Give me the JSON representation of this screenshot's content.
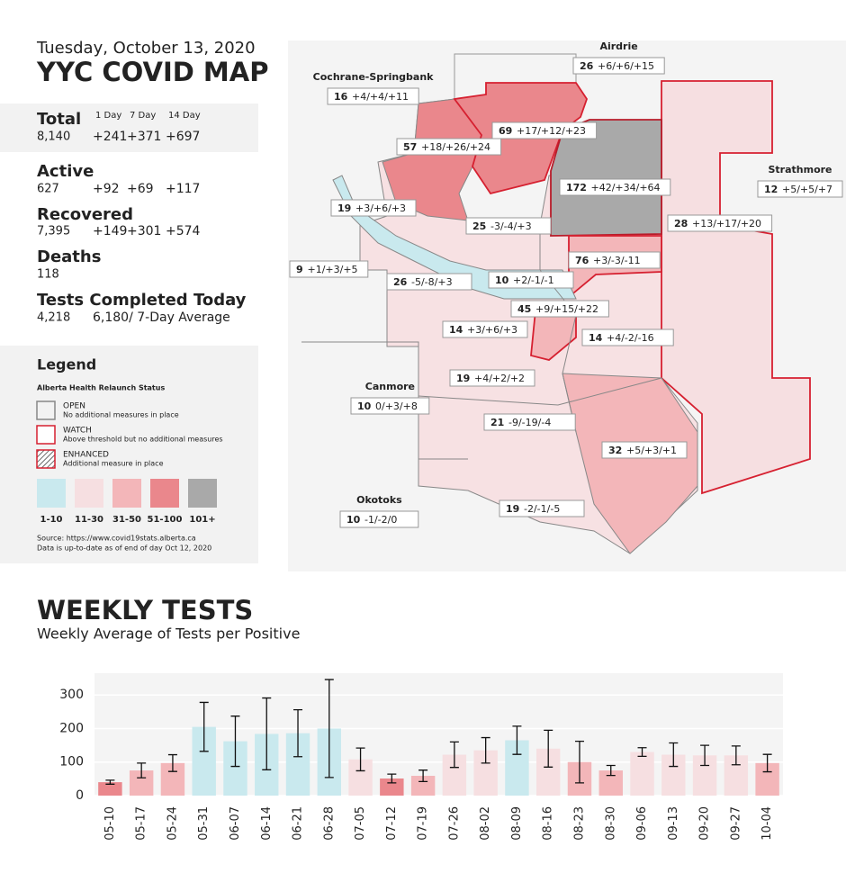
{
  "header": {
    "date": "Tuesday, October 13, 2020",
    "title": "YYC COVID MAP"
  },
  "stats": {
    "columns": [
      "1 Day",
      "7 Day",
      "14 Day"
    ],
    "rows": [
      {
        "label": "Total",
        "value": "8,140",
        "changes": [
          "+241",
          "+371",
          "+697"
        ]
      },
      {
        "label": "Active",
        "value": "627",
        "changes": [
          "+92",
          "+69",
          "+117"
        ]
      },
      {
        "label": "Recovered",
        "value": "7,395",
        "changes": [
          "+149",
          "+301",
          "+574"
        ]
      },
      {
        "label": "Deaths",
        "value": "118"
      },
      {
        "label": "Tests Completed Today",
        "value": "4,218",
        "note": "6,180/ 7-Day Average"
      }
    ]
  },
  "legend": {
    "title": "Legend",
    "subtitle": "Alberta Health Relaunch Status",
    "statuses": [
      {
        "label": "OPEN",
        "description": "No additional measures in place"
      },
      {
        "label": "WATCH",
        "description": "Above threshold but no additional measures"
      },
      {
        "label": "ENHANCED",
        "description": "Additional measure in place"
      }
    ],
    "swatches": [
      {
        "label": "1-10",
        "color": "#c9e9ee"
      },
      {
        "label": "11-30",
        "color": "#f6dfe1"
      },
      {
        "label": "31-50",
        "color": "#f3b6b9"
      },
      {
        "label": "51-100",
        "color": "#ea878c"
      },
      {
        "label": "101+",
        "color": "#a9a9a9"
      }
    ],
    "source": [
      "Source: https://www.covid19stats.alberta.ca",
      "Data is up-to-date as of end of day Oct 12, 2020"
    ]
  },
  "map": {
    "labels": [
      {
        "name": "Airdrie",
        "count": "26",
        "change": "+6/+6/+15"
      },
      {
        "name": "Cochrane-Springbank",
        "count": "16",
        "change": "+4/+4/+11"
      },
      {
        "count": "57",
        "change": "+18/+26/+24"
      },
      {
        "count": "69",
        "change": "+17/+12/+23"
      },
      {
        "count": "172",
        "change": "+42/+34/+64"
      },
      {
        "count": "19",
        "change": "+3/+6/+3"
      },
      {
        "count": "25",
        "change": "-3/-4/+3"
      },
      {
        "name": "Strathmore",
        "count": "12",
        "change": "+5/+5/+7"
      },
      {
        "count": "28",
        "change": "+13/+17/+20"
      },
      {
        "count": "9",
        "change": "+1/+3/+5"
      },
      {
        "count": "76",
        "change": "+3/-3/-11"
      },
      {
        "count": "26",
        "change": "-5/-8/+3"
      },
      {
        "count": "10",
        "change": "+2/-1/-1"
      },
      {
        "count": "45",
        "change": "+9/+15/+22"
      },
      {
        "count": "14",
        "change": "+3/+6/+3"
      },
      {
        "count": "14",
        "change": "+4/-2/-16"
      },
      {
        "name": "Canmore",
        "count": "10",
        "change": "0/+3/+8"
      },
      {
        "count": "19",
        "change": "+4/+2/+2"
      },
      {
        "count": "21",
        "change": "-9/-19/-4"
      },
      {
        "count": "32",
        "change": "+5/+3/+1"
      },
      {
        "name": "Okotoks",
        "count": "10",
        "change": "-1/-2/0"
      },
      {
        "count": "19",
        "change": "-2/-1/-5"
      }
    ]
  },
  "chart_data": {
    "type": "bar",
    "title": "WEEKLY TESTS",
    "subtitle": "Weekly Average of Tests per Positive",
    "categories": [
      "05-10",
      "05-17",
      "05-24",
      "05-31",
      "06-07",
      "06-14",
      "06-21",
      "06-28",
      "07-05",
      "07-12",
      "07-19",
      "07-26",
      "08-02",
      "08-09",
      "08-16",
      "08-23",
      "08-30",
      "09-06",
      "09-13",
      "09-20",
      "09-27",
      "10-04"
    ],
    "values": [
      40,
      75,
      97,
      205,
      162,
      184,
      186,
      200,
      108,
      51,
      59,
      122,
      135,
      165,
      140,
      100,
      75,
      130,
      122,
      120,
      120,
      97
    ],
    "errors": [
      6,
      22,
      25,
      73,
      75,
      107,
      70,
      146,
      34,
      13,
      17,
      38,
      38,
      42,
      55,
      62,
      15,
      13,
      35,
      30,
      28,
      26
    ],
    "colors": [
      "#ea878c",
      "#f3b6b9",
      "#f3b6b9",
      "#c9e9ee",
      "#c9e9ee",
      "#c9e9ee",
      "#c9e9ee",
      "#c9e9ee",
      "#f6dfe1",
      "#ea878c",
      "#f3b6b9",
      "#f6dfe1",
      "#f6dfe1",
      "#c9e9ee",
      "#f6dfe1",
      "#f3b6b9",
      "#f3b6b9",
      "#f6dfe1",
      "#f6dfe1",
      "#f6dfe1",
      "#f6dfe1",
      "#f3b6b9"
    ],
    "ylim": [
      0,
      365
    ],
    "yticks": [
      0,
      100,
      200,
      300
    ],
    "grid": true
  }
}
